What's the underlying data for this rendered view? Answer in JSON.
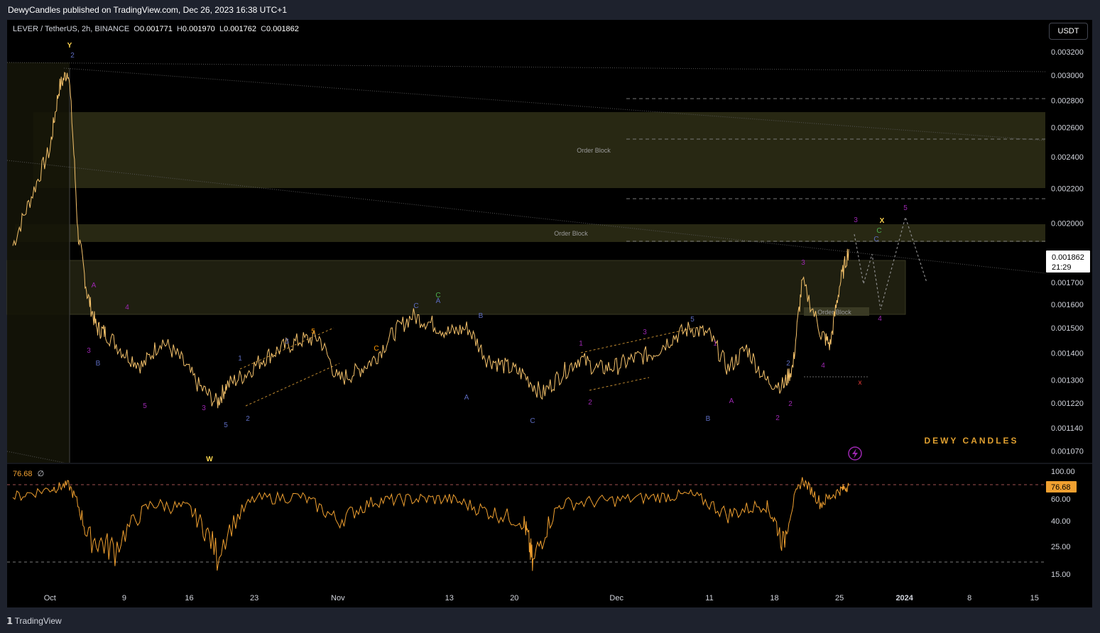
{
  "header": {
    "publisher": "DewyCandles published on TradingView.com, Dec 26, 2023 16:38 UTC+1"
  },
  "legend": {
    "symbol": "LEVER / TetherUS, 2h, BINANCE",
    "o_label": "O",
    "o": "0.001771",
    "h_label": "H",
    "h": "0.001970",
    "l_label": "L",
    "l": "0.001762",
    "c_label": "C",
    "c": "0.001862"
  },
  "currency_button": "USDT",
  "price_badge": {
    "price": "0.001862",
    "countdown": "21:29"
  },
  "rsi_legend": {
    "value": "76.68",
    "symbol": "∅"
  },
  "rsi_badge": "76.68",
  "watermark": "DEWY CANDLES",
  "footer": {
    "brand": "TradingView"
  },
  "colors": {
    "background": "#000000",
    "price_line": "#f5c26b",
    "rsi_line": "#f0a030",
    "order_block": "#2a2a14",
    "axis_text": "#d1d4dc"
  },
  "icons": {
    "logo": "tradingview-logo-icon",
    "alert": "lightning-icon"
  },
  "chart_data": [
    {
      "type": "line",
      "title": "LEVER / TetherUS, 2h, BINANCE",
      "x_tick_labels": [
        "Oct",
        "9",
        "16",
        "23",
        "Nov",
        "13",
        "20",
        "Dec",
        "11",
        "18",
        "25",
        "2024",
        "8",
        "15"
      ],
      "y_tick_labels": [
        "0.003200",
        "0.003000",
        "0.002800",
        "0.002600",
        "0.002400",
        "0.002200",
        "0.002000",
        "0.001700",
        "0.001600",
        "0.001500",
        "0.001400",
        "0.001300",
        "0.001220",
        "0.001140",
        "0.001070"
      ],
      "ylim": [
        0.00104,
        0.0034
      ],
      "y_scale": "log",
      "grid": false,
      "series": [
        {
          "x": [
            "2023-09-27",
            "2023-09-29",
            "2023-10-01",
            "2023-10-02",
            "2023-10-03",
            "2023-10-04",
            "2023-10-05",
            "2023-10-06",
            "2023-10-07",
            "2023-10-09",
            "2023-10-11",
            "2023-10-13",
            "2023-10-15",
            "2023-10-17",
            "2023-10-19",
            "2023-10-20",
            "2023-10-22",
            "2023-10-24",
            "2023-10-26",
            "2023-10-28",
            "2023-10-30",
            "2023-11-01",
            "2023-11-03",
            "2023-11-05",
            "2023-11-07",
            "2023-11-09",
            "2023-11-11",
            "2023-11-13",
            "2023-11-15",
            "2023-11-17",
            "2023-11-19",
            "2023-11-21",
            "2023-11-23",
            "2023-11-25",
            "2023-11-27",
            "2023-11-29",
            "2023-12-01",
            "2023-12-03",
            "2023-12-05",
            "2023-12-07",
            "2023-12-09",
            "2023-12-11",
            "2023-12-13",
            "2023-12-15",
            "2023-12-17",
            "2023-12-19",
            "2023-12-20",
            "2023-12-21",
            "2023-12-23",
            "2023-12-24",
            "2023-12-25",
            "2023-12-26"
          ],
          "values": [
            0.00188,
            0.00215,
            0.00245,
            0.0029,
            0.00305,
            0.00195,
            0.00165,
            0.0015,
            0.00148,
            0.0014,
            0.00135,
            0.00145,
            0.00138,
            0.00128,
            0.00122,
            0.00128,
            0.00132,
            0.00138,
            0.00142,
            0.00145,
            0.00146,
            0.0013,
            0.00133,
            0.00138,
            0.00148,
            0.00155,
            0.00152,
            0.00148,
            0.0015,
            0.00138,
            0.00135,
            0.00132,
            0.00125,
            0.00132,
            0.00138,
            0.00134,
            0.00135,
            0.00138,
            0.0014,
            0.00146,
            0.0015,
            0.00147,
            0.00134,
            0.00142,
            0.0013,
            0.00128,
            0.00135,
            0.0017,
            0.00148,
            0.00143,
            0.00168,
            0.001862
          ]
        }
      ]
    },
    {
      "type": "line",
      "title": "RSI",
      "y_tick_labels": [
        "100.00",
        "60.00",
        "40.00",
        "25.00",
        "15.00"
      ],
      "ylim": [
        12,
        100
      ],
      "series": [
        {
          "x": [
            "2023-09-27",
            "2023-10-01",
            "2023-10-03",
            "2023-10-05",
            "2023-10-08",
            "2023-10-12",
            "2023-10-16",
            "2023-10-19",
            "2023-10-23",
            "2023-10-28",
            "2023-11-01",
            "2023-11-05",
            "2023-11-09",
            "2023-11-13",
            "2023-11-17",
            "2023-11-21",
            "2023-11-22",
            "2023-11-25",
            "2023-11-30",
            "2023-12-05",
            "2023-12-09",
            "2023-12-13",
            "2023-12-17",
            "2023-12-19",
            "2023-12-21",
            "2023-12-23",
            "2023-12-25",
            "2023-12-26"
          ],
          "values": [
            62,
            72,
            78,
            30,
            24,
            55,
            50,
            22,
            60,
            63,
            40,
            58,
            60,
            60,
            48,
            40,
            17,
            55,
            58,
            62,
            65,
            45,
            55,
            26,
            85,
            55,
            70,
            76.68
          ]
        }
      ],
      "reference_lines": [
        80,
        20
      ]
    }
  ],
  "annotations": {
    "order_blocks": [
      "Order Block",
      "Order Block",
      "Order Block"
    ],
    "wave_labels": [
      "Y",
      "W",
      "X",
      "C",
      "2",
      "A",
      "4",
      "3",
      "5",
      "B",
      "1",
      "C",
      "A",
      "C",
      "5",
      "3",
      "3",
      "2",
      "2",
      "C",
      "A",
      "B",
      "3",
      "5",
      "1",
      "B",
      "A",
      "2",
      "3",
      "2",
      "1",
      "4",
      "2",
      "C",
      "3",
      "5",
      "C",
      "4",
      "5",
      "x"
    ]
  }
}
